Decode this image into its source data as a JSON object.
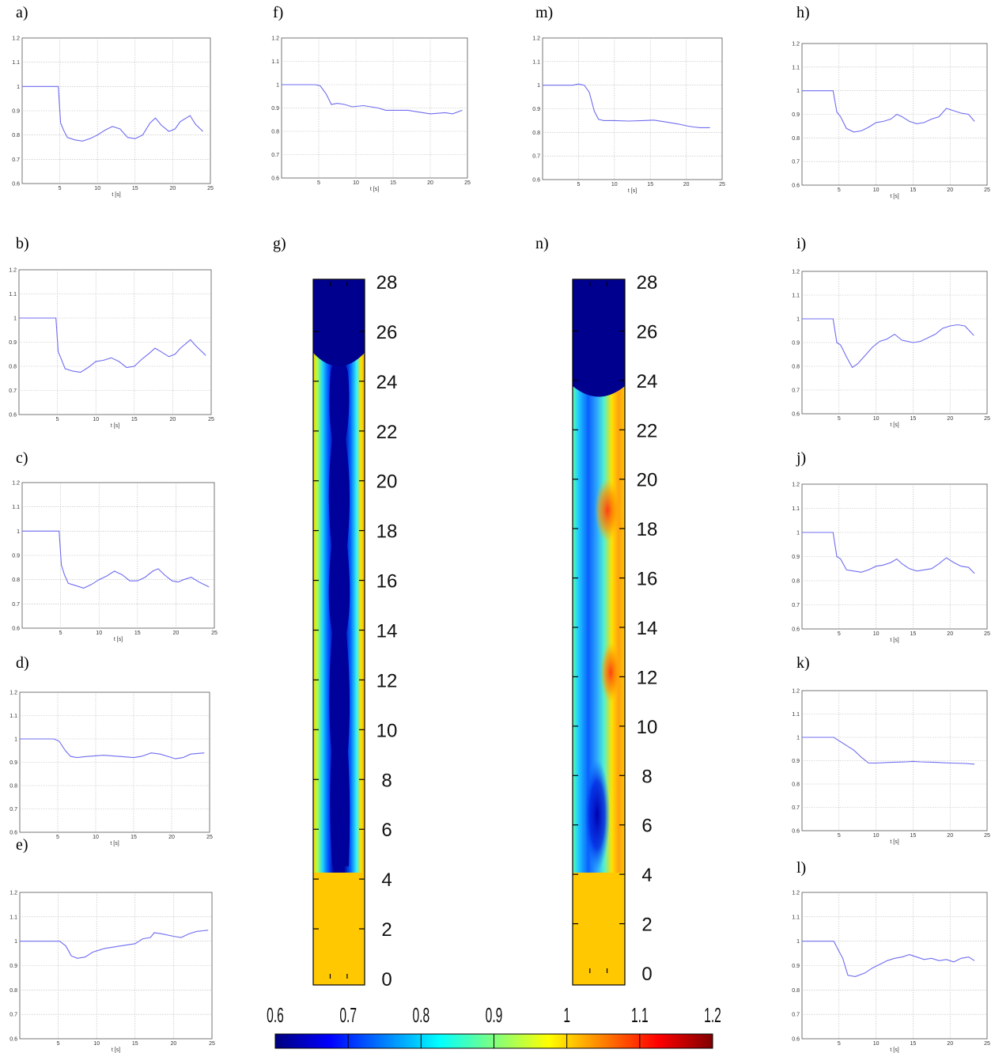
{
  "colors": {
    "line": "#6f6cf0",
    "grid": "#b8b8b8",
    "axis": "#555555",
    "colormap": [
      "#00007f",
      "#0000ff",
      "#007fff",
      "#00ffff",
      "#7fff7f",
      "#ffff00",
      "#ff7f00",
      "#ff0000",
      "#7f0000"
    ]
  },
  "chart_data": [
    {
      "label": "a)",
      "type": "line",
      "xlabel": "t [s]",
      "xlim": [
        0,
        25
      ],
      "ylim": [
        0.6,
        1.2
      ],
      "xticks": [
        "5",
        "10",
        "15",
        "20",
        "25"
      ],
      "yticks": [
        "0.6",
        "0.7",
        "0.8",
        "0.9",
        "1",
        "1.1",
        "1.2"
      ],
      "grid": true,
      "x": [
        0,
        4.8,
        5.1,
        5.5,
        6,
        7,
        8,
        9,
        10,
        11,
        12,
        13,
        14,
        15,
        16,
        17,
        17.7,
        18.5,
        19.5,
        20.3,
        21,
        22.3,
        23,
        24
      ],
      "y": [
        1.0,
        1.0,
        0.85,
        0.82,
        0.79,
        0.78,
        0.775,
        0.785,
        0.8,
        0.82,
        0.835,
        0.825,
        0.79,
        0.785,
        0.8,
        0.85,
        0.87,
        0.84,
        0.815,
        0.825,
        0.855,
        0.88,
        0.845,
        0.815
      ]
    },
    {
      "label": "b)",
      "type": "line",
      "xlabel": "t [s]",
      "xlim": [
        0,
        25
      ],
      "ylim": [
        0.6,
        1.2
      ],
      "xticks": [
        "5",
        "10",
        "15",
        "20",
        "25"
      ],
      "yticks": [
        "0.6",
        "0.7",
        "0.8",
        "0.9",
        "1",
        "1.1",
        "1.2"
      ],
      "grid": true,
      "x": [
        0,
        4.8,
        5.1,
        5.5,
        6,
        7,
        8,
        9,
        10,
        11,
        12,
        13,
        14,
        15,
        16,
        17,
        17.7,
        18.5,
        19.5,
        20.3,
        21,
        22.3,
        23,
        24.3
      ],
      "y": [
        1.0,
        1.0,
        0.86,
        0.83,
        0.79,
        0.78,
        0.775,
        0.795,
        0.82,
        0.825,
        0.835,
        0.82,
        0.795,
        0.8,
        0.83,
        0.855,
        0.875,
        0.86,
        0.84,
        0.85,
        0.875,
        0.91,
        0.885,
        0.845
      ]
    },
    {
      "label": "c)",
      "type": "line",
      "xlabel": "t [s]",
      "xlim": [
        0,
        25
      ],
      "ylim": [
        0.6,
        1.2
      ],
      "xticks": [
        "5",
        "10",
        "15",
        "20",
        "25"
      ],
      "yticks": [
        "0.6",
        "0.7",
        "0.8",
        "0.9",
        "1",
        "1.1",
        "1.2"
      ],
      "grid": true,
      "x": [
        0,
        4.8,
        5.1,
        5.5,
        6,
        7,
        8,
        9,
        10,
        11,
        12,
        13,
        14,
        15,
        16,
        17,
        17.7,
        18.5,
        19.5,
        20.3,
        21,
        22,
        23,
        24.3
      ],
      "y": [
        1.0,
        1.0,
        0.86,
        0.82,
        0.785,
        0.775,
        0.765,
        0.78,
        0.8,
        0.815,
        0.835,
        0.82,
        0.795,
        0.795,
        0.81,
        0.835,
        0.845,
        0.82,
        0.795,
        0.79,
        0.8,
        0.81,
        0.79,
        0.77
      ]
    },
    {
      "label": "d)",
      "type": "line",
      "xlabel": "t [s]",
      "xlim": [
        0,
        25
      ],
      "ylim": [
        0.6,
        1.2
      ],
      "xticks": [
        "5",
        "10",
        "15",
        "20",
        "25"
      ],
      "yticks": [
        "0.6",
        "0.7",
        "0.8",
        "0.9",
        "1",
        "1.1",
        "1.2"
      ],
      "grid": true,
      "x": [
        0,
        4.5,
        5.2,
        6,
        6.7,
        7.5,
        9,
        11,
        13,
        15,
        16,
        17.3,
        18.5,
        19.5,
        20.5,
        21.5,
        22.5,
        24.3
      ],
      "y": [
        1.0,
        1.0,
        0.99,
        0.95,
        0.925,
        0.92,
        0.925,
        0.93,
        0.925,
        0.92,
        0.925,
        0.94,
        0.935,
        0.925,
        0.915,
        0.92,
        0.935,
        0.94
      ]
    },
    {
      "label": "e)",
      "type": "line",
      "xlabel": "t [s]",
      "xlim": [
        0,
        25
      ],
      "ylim": [
        0.6,
        1.2
      ],
      "xticks": [
        "5",
        "10",
        "15",
        "20",
        "25"
      ],
      "yticks": [
        "0.6",
        "0.7",
        "0.8",
        "0.9",
        "1",
        "1.1",
        "1.2"
      ],
      "grid": true,
      "x": [
        0,
        4.5,
        5.2,
        6,
        6.7,
        7.5,
        8.5,
        9.5,
        11,
        13,
        15,
        16,
        17,
        17.5,
        18.5,
        20,
        21,
        22,
        23,
        24.5
      ],
      "y": [
        1.0,
        1.0,
        1.0,
        0.98,
        0.94,
        0.93,
        0.935,
        0.955,
        0.97,
        0.98,
        0.99,
        1.01,
        1.015,
        1.035,
        1.03,
        1.02,
        1.015,
        1.03,
        1.04,
        1.045
      ]
    },
    {
      "label": "f)",
      "type": "line",
      "xlabel": "t [s]",
      "xlim": [
        0,
        25
      ],
      "ylim": [
        0.6,
        1.2
      ],
      "xticks": [
        "5",
        "10",
        "15",
        "20",
        "25"
      ],
      "yticks": [
        "0.6",
        "0.7",
        "0.8",
        "0.9",
        "1",
        "1.1",
        "1.2"
      ],
      "grid": true,
      "x": [
        0,
        4.5,
        5.2,
        6,
        6.7,
        7.5,
        8.5,
        9.5,
        11,
        12,
        13,
        14,
        15,
        16,
        17,
        18,
        19,
        20,
        22,
        23,
        24.3
      ],
      "y": [
        1.0,
        1.0,
        0.995,
        0.96,
        0.915,
        0.92,
        0.915,
        0.905,
        0.91,
        0.905,
        0.9,
        0.89,
        0.89,
        0.89,
        0.89,
        0.885,
        0.88,
        0.875,
        0.88,
        0.875,
        0.89
      ]
    },
    {
      "label": "m)",
      "type": "line",
      "xlabel": "t [s]",
      "xlim": [
        0,
        25
      ],
      "ylim": [
        0.6,
        1.2
      ],
      "xticks": [
        "5",
        "10",
        "15",
        "20",
        "25"
      ],
      "yticks": [
        "0.6",
        "0.7",
        "0.8",
        "0.9",
        "1",
        "1.1",
        "1.2"
      ],
      "grid": true,
      "x": [
        0,
        4.2,
        5,
        5.8,
        6.5,
        7.2,
        7.8,
        8.5,
        10,
        12,
        14,
        15.5,
        17,
        18,
        19,
        20,
        21,
        22,
        23.3
      ],
      "y": [
        1.0,
        1.0,
        1.005,
        1.0,
        0.97,
        0.89,
        0.855,
        0.85,
        0.85,
        0.848,
        0.85,
        0.852,
        0.845,
        0.84,
        0.835,
        0.828,
        0.823,
        0.82,
        0.82
      ]
    },
    {
      "label": "h)",
      "type": "line",
      "xlabel": "t [s]",
      "xlim": [
        0,
        25
      ],
      "ylim": [
        0.6,
        1.2
      ],
      "xticks": [
        "5",
        "10",
        "15",
        "20",
        "25"
      ],
      "yticks": [
        "0.6",
        "0.7",
        "0.8",
        "0.9",
        "1",
        "1.1",
        "1.2"
      ],
      "grid": true,
      "x": [
        0,
        4.2,
        4.7,
        5.2,
        6,
        7,
        8,
        9,
        10,
        11,
        12,
        12.8,
        13.5,
        14.5,
        15.5,
        16.5,
        17.5,
        18.5,
        19.5,
        20.5,
        21.5,
        22.5,
        23.3
      ],
      "y": [
        1.0,
        1.0,
        0.91,
        0.89,
        0.84,
        0.825,
        0.83,
        0.845,
        0.865,
        0.87,
        0.88,
        0.9,
        0.89,
        0.87,
        0.86,
        0.865,
        0.88,
        0.89,
        0.925,
        0.915,
        0.905,
        0.9,
        0.87
      ]
    },
    {
      "label": "i)",
      "type": "line",
      "xlabel": "t [s]",
      "xlim": [
        0,
        25
      ],
      "ylim": [
        0.6,
        1.2
      ],
      "xticks": [
        "5",
        "10",
        "15",
        "20",
        "25"
      ],
      "yticks": [
        "0.6",
        "0.7",
        "0.8",
        "0.9",
        "1",
        "1.1",
        "1.2"
      ],
      "grid": true,
      "x": [
        0,
        4.2,
        4.7,
        5.2,
        6,
        6.8,
        7.5,
        8.5,
        9.5,
        10.5,
        11.5,
        12.5,
        13.5,
        15,
        16,
        17,
        18,
        19,
        20,
        21,
        22,
        23.2
      ],
      "y": [
        1.0,
        1.0,
        0.9,
        0.89,
        0.84,
        0.795,
        0.81,
        0.845,
        0.88,
        0.905,
        0.915,
        0.935,
        0.91,
        0.9,
        0.905,
        0.92,
        0.935,
        0.96,
        0.97,
        0.975,
        0.97,
        0.93
      ]
    },
    {
      "label": "j)",
      "type": "line",
      "xlabel": "t [s]",
      "xlim": [
        0,
        25
      ],
      "ylim": [
        0.6,
        1.2
      ],
      "xticks": [
        "5",
        "10",
        "15",
        "20",
        "25"
      ],
      "yticks": [
        "0.6",
        "0.7",
        "0.8",
        "0.9",
        "1",
        "1.1",
        "1.2"
      ],
      "grid": true,
      "x": [
        0,
        4.2,
        4.7,
        5.2,
        6,
        7,
        8,
        9,
        10,
        11,
        12,
        12.8,
        13.5,
        14.5,
        15.5,
        16.5,
        17.5,
        18.5,
        19.5,
        20.5,
        21.5,
        22.5,
        23.3
      ],
      "y": [
        1.0,
        1.0,
        0.9,
        0.89,
        0.845,
        0.84,
        0.835,
        0.845,
        0.86,
        0.865,
        0.875,
        0.89,
        0.87,
        0.85,
        0.84,
        0.845,
        0.85,
        0.87,
        0.895,
        0.875,
        0.86,
        0.855,
        0.83
      ]
    },
    {
      "label": "k)",
      "type": "line",
      "xlabel": "t [s]",
      "xlim": [
        0,
        25
      ],
      "ylim": [
        0.6,
        1.2
      ],
      "xticks": [
        "5",
        "10",
        "15",
        "20",
        "25"
      ],
      "yticks": [
        "0.6",
        "0.7",
        "0.8",
        "0.9",
        "1",
        "1.1",
        "1.2"
      ],
      "grid": true,
      "x": [
        0,
        4.3,
        5,
        6,
        7,
        8,
        9,
        10,
        12,
        14,
        15,
        16,
        18,
        20,
        22,
        23.3
      ],
      "y": [
        1.0,
        1.0,
        0.985,
        0.965,
        0.945,
        0.915,
        0.89,
        0.89,
        0.893,
        0.895,
        0.897,
        0.895,
        0.893,
        0.89,
        0.888,
        0.885
      ]
    },
    {
      "label": "l)",
      "type": "line",
      "xlabel": "t [s]",
      "xlim": [
        0,
        25
      ],
      "ylim": [
        0.6,
        1.2
      ],
      "xticks": [
        "5",
        "10",
        "15",
        "20",
        "25"
      ],
      "yticks": [
        "0.6",
        "0.7",
        "0.8",
        "0.9",
        "1",
        "1.1",
        "1.2"
      ],
      "grid": true,
      "x": [
        0,
        4.3,
        4.8,
        5.5,
        6.2,
        7.2,
        8.5,
        9.5,
        10.5,
        11.5,
        12.5,
        13.5,
        14.5,
        15.5,
        16.5,
        17.5,
        18.5,
        19.5,
        20.5,
        21.5,
        22.5,
        23.3
      ],
      "y": [
        1.0,
        1.0,
        0.97,
        0.93,
        0.86,
        0.855,
        0.87,
        0.89,
        0.905,
        0.92,
        0.93,
        0.935,
        0.945,
        0.935,
        0.925,
        0.93,
        0.92,
        0.925,
        0.915,
        0.93,
        0.935,
        0.92
      ]
    },
    {
      "label": "g)",
      "type": "heatmap",
      "yticks": [
        "0",
        "2",
        "4",
        "6",
        "8",
        "10",
        "12",
        "14",
        "16",
        "18",
        "20",
        "22",
        "24",
        "26",
        "28"
      ],
      "ylim": [
        0,
        28
      ],
      "fill_level": 24.3,
      "colorbar_ticks": [
        "0.6",
        "0.7",
        "0.8",
        "0.9",
        "1",
        "1.1",
        "1.2"
      ],
      "clim": [
        0.6,
        1.2
      ]
    },
    {
      "label": "n)",
      "type": "heatmap",
      "yticks": [
        "0",
        "2",
        "4",
        "6",
        "8",
        "10",
        "12",
        "14",
        "16",
        "18",
        "20",
        "22",
        "24",
        "26",
        "28"
      ],
      "ylim": [
        0,
        28
      ],
      "fill_level": 23.7,
      "colorbar_ticks": [
        "0.6",
        "0.7",
        "0.8",
        "0.9",
        "1",
        "1.1",
        "1.2"
      ],
      "clim": [
        0.6,
        1.2
      ]
    }
  ]
}
